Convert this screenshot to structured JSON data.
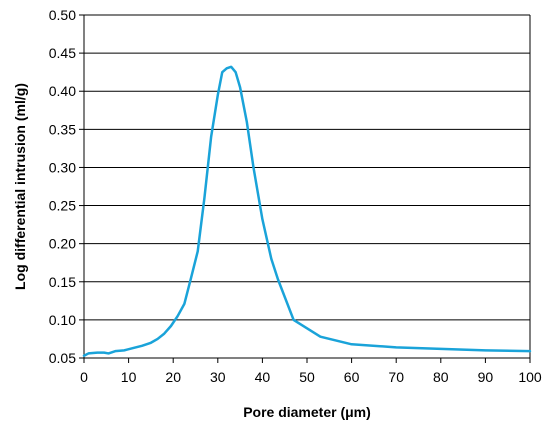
{
  "chart_data": {
    "type": "line",
    "title": "",
    "xlabel": "Pore diameter (μm)",
    "ylabel": "Log differential intrusion (ml/g)",
    "xlim": [
      0,
      100
    ],
    "ylim": [
      0.05,
      0.5
    ],
    "x_ticks": [
      "0",
      "10",
      "20",
      "30",
      "40",
      "50",
      "60",
      "70",
      "80",
      "90",
      "100"
    ],
    "y_ticks": [
      "0.05",
      "0.10",
      "0.15",
      "0.20",
      "0.25",
      "0.30",
      "0.35",
      "0.40",
      "0.45",
      "0.50"
    ],
    "grid": "horizontal",
    "legend": "none",
    "series": [
      {
        "color": "#1aa3d9",
        "points": [
          [
            0,
            0.053
          ],
          [
            1,
            0.056
          ],
          [
            3,
            0.057
          ],
          [
            4.5,
            0.057
          ],
          [
            5.5,
            0.056
          ],
          [
            7,
            0.059
          ],
          [
            9,
            0.06
          ],
          [
            11,
            0.063
          ],
          [
            13,
            0.066
          ],
          [
            15,
            0.07
          ],
          [
            16.5,
            0.075
          ],
          [
            18,
            0.082
          ],
          [
            19.5,
            0.092
          ],
          [
            21,
            0.105
          ],
          [
            22.5,
            0.121
          ],
          [
            24,
            0.155
          ],
          [
            25.5,
            0.19
          ],
          [
            27,
            0.26
          ],
          [
            28.5,
            0.34
          ],
          [
            30,
            0.395
          ],
          [
            31,
            0.425
          ],
          [
            32,
            0.43
          ],
          [
            33,
            0.432
          ],
          [
            34,
            0.425
          ],
          [
            35,
            0.405
          ],
          [
            36.5,
            0.36
          ],
          [
            38,
            0.3
          ],
          [
            40,
            0.232
          ],
          [
            42,
            0.18
          ],
          [
            43.5,
            0.153
          ],
          [
            47,
            0.1
          ],
          [
            53,
            0.078
          ],
          [
            60,
            0.068
          ],
          [
            70,
            0.064
          ],
          [
            80,
            0.062
          ],
          [
            90,
            0.06
          ],
          [
            100,
            0.059
          ]
        ]
      }
    ]
  }
}
